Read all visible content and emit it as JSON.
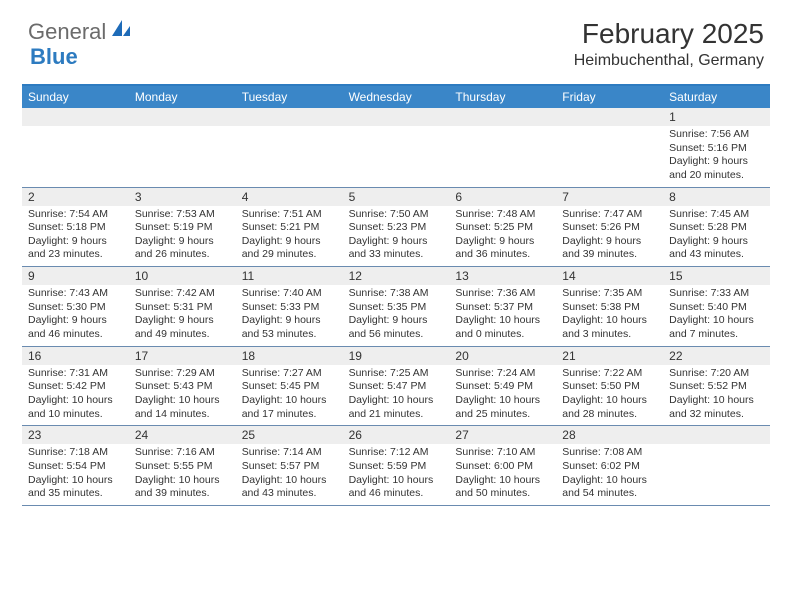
{
  "logo": {
    "text1": "General",
    "text2": "Blue"
  },
  "title": "February 2025",
  "location": "Heimbuchenthal, Germany",
  "colors": {
    "header_bg": "#3a86c8",
    "border": "#6a8bb0",
    "daynum_bg": "#eeeeee",
    "accent": "#2d7bc0"
  },
  "day_names": [
    "Sunday",
    "Monday",
    "Tuesday",
    "Wednesday",
    "Thursday",
    "Friday",
    "Saturday"
  ],
  "weeks": [
    [
      {
        "n": "",
        "empty": true
      },
      {
        "n": "",
        "empty": true
      },
      {
        "n": "",
        "empty": true
      },
      {
        "n": "",
        "empty": true
      },
      {
        "n": "",
        "empty": true
      },
      {
        "n": "",
        "empty": true
      },
      {
        "n": "1",
        "sunrise": "7:56 AM",
        "sunset": "5:16 PM",
        "daylight": "9 hours and 20 minutes."
      }
    ],
    [
      {
        "n": "2",
        "sunrise": "7:54 AM",
        "sunset": "5:18 PM",
        "daylight": "9 hours and 23 minutes."
      },
      {
        "n": "3",
        "sunrise": "7:53 AM",
        "sunset": "5:19 PM",
        "daylight": "9 hours and 26 minutes."
      },
      {
        "n": "4",
        "sunrise": "7:51 AM",
        "sunset": "5:21 PM",
        "daylight": "9 hours and 29 minutes."
      },
      {
        "n": "5",
        "sunrise": "7:50 AM",
        "sunset": "5:23 PM",
        "daylight": "9 hours and 33 minutes."
      },
      {
        "n": "6",
        "sunrise": "7:48 AM",
        "sunset": "5:25 PM",
        "daylight": "9 hours and 36 minutes."
      },
      {
        "n": "7",
        "sunrise": "7:47 AM",
        "sunset": "5:26 PM",
        "daylight": "9 hours and 39 minutes."
      },
      {
        "n": "8",
        "sunrise": "7:45 AM",
        "sunset": "5:28 PM",
        "daylight": "9 hours and 43 minutes."
      }
    ],
    [
      {
        "n": "9",
        "sunrise": "7:43 AM",
        "sunset": "5:30 PM",
        "daylight": "9 hours and 46 minutes."
      },
      {
        "n": "10",
        "sunrise": "7:42 AM",
        "sunset": "5:31 PM",
        "daylight": "9 hours and 49 minutes."
      },
      {
        "n": "11",
        "sunrise": "7:40 AM",
        "sunset": "5:33 PM",
        "daylight": "9 hours and 53 minutes."
      },
      {
        "n": "12",
        "sunrise": "7:38 AM",
        "sunset": "5:35 PM",
        "daylight": "9 hours and 56 minutes."
      },
      {
        "n": "13",
        "sunrise": "7:36 AM",
        "sunset": "5:37 PM",
        "daylight": "10 hours and 0 minutes."
      },
      {
        "n": "14",
        "sunrise": "7:35 AM",
        "sunset": "5:38 PM",
        "daylight": "10 hours and 3 minutes."
      },
      {
        "n": "15",
        "sunrise": "7:33 AM",
        "sunset": "5:40 PM",
        "daylight": "10 hours and 7 minutes."
      }
    ],
    [
      {
        "n": "16",
        "sunrise": "7:31 AM",
        "sunset": "5:42 PM",
        "daylight": "10 hours and 10 minutes."
      },
      {
        "n": "17",
        "sunrise": "7:29 AM",
        "sunset": "5:43 PM",
        "daylight": "10 hours and 14 minutes."
      },
      {
        "n": "18",
        "sunrise": "7:27 AM",
        "sunset": "5:45 PM",
        "daylight": "10 hours and 17 minutes."
      },
      {
        "n": "19",
        "sunrise": "7:25 AM",
        "sunset": "5:47 PM",
        "daylight": "10 hours and 21 minutes."
      },
      {
        "n": "20",
        "sunrise": "7:24 AM",
        "sunset": "5:49 PM",
        "daylight": "10 hours and 25 minutes."
      },
      {
        "n": "21",
        "sunrise": "7:22 AM",
        "sunset": "5:50 PM",
        "daylight": "10 hours and 28 minutes."
      },
      {
        "n": "22",
        "sunrise": "7:20 AM",
        "sunset": "5:52 PM",
        "daylight": "10 hours and 32 minutes."
      }
    ],
    [
      {
        "n": "23",
        "sunrise": "7:18 AM",
        "sunset": "5:54 PM",
        "daylight": "10 hours and 35 minutes."
      },
      {
        "n": "24",
        "sunrise": "7:16 AM",
        "sunset": "5:55 PM",
        "daylight": "10 hours and 39 minutes."
      },
      {
        "n": "25",
        "sunrise": "7:14 AM",
        "sunset": "5:57 PM",
        "daylight": "10 hours and 43 minutes."
      },
      {
        "n": "26",
        "sunrise": "7:12 AM",
        "sunset": "5:59 PM",
        "daylight": "10 hours and 46 minutes."
      },
      {
        "n": "27",
        "sunrise": "7:10 AM",
        "sunset": "6:00 PM",
        "daylight": "10 hours and 50 minutes."
      },
      {
        "n": "28",
        "sunrise": "7:08 AM",
        "sunset": "6:02 PM",
        "daylight": "10 hours and 54 minutes."
      },
      {
        "n": "",
        "empty": true
      }
    ]
  ],
  "labels": {
    "sunrise": "Sunrise:",
    "sunset": "Sunset:",
    "daylight": "Daylight:"
  }
}
